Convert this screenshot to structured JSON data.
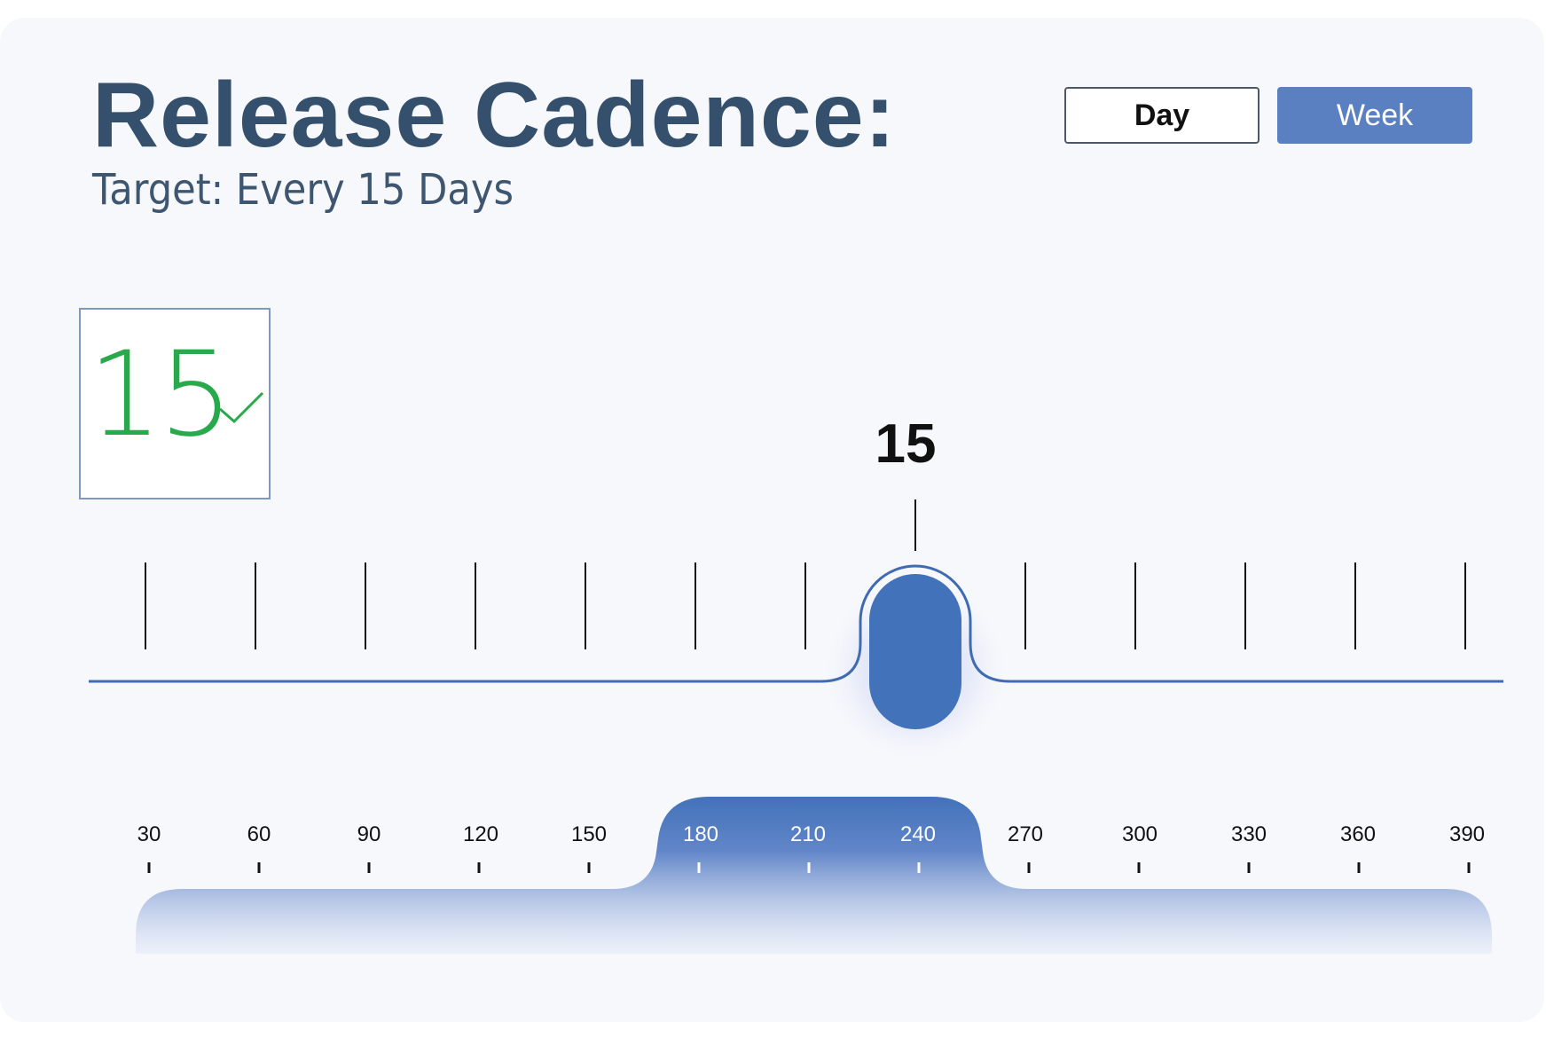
{
  "header": {
    "title": "Release Cadence:",
    "subtitle": "Target: Every 15 Days"
  },
  "toggle": {
    "day_label": "Day",
    "week_label": "Week",
    "selected": "Week"
  },
  "value_display": {
    "value": "15",
    "status_icon": "check-icon",
    "status_color": "#28a94b"
  },
  "slider": {
    "current_value": "15",
    "accent_color": "#4272b9",
    "tick_count": 13
  },
  "scale": {
    "labels": [
      "30",
      "60",
      "90",
      "120",
      "150",
      "180",
      "210",
      "240",
      "270",
      "300",
      "330",
      "360",
      "390"
    ],
    "highlighted_range": [
      "180",
      "240"
    ]
  }
}
